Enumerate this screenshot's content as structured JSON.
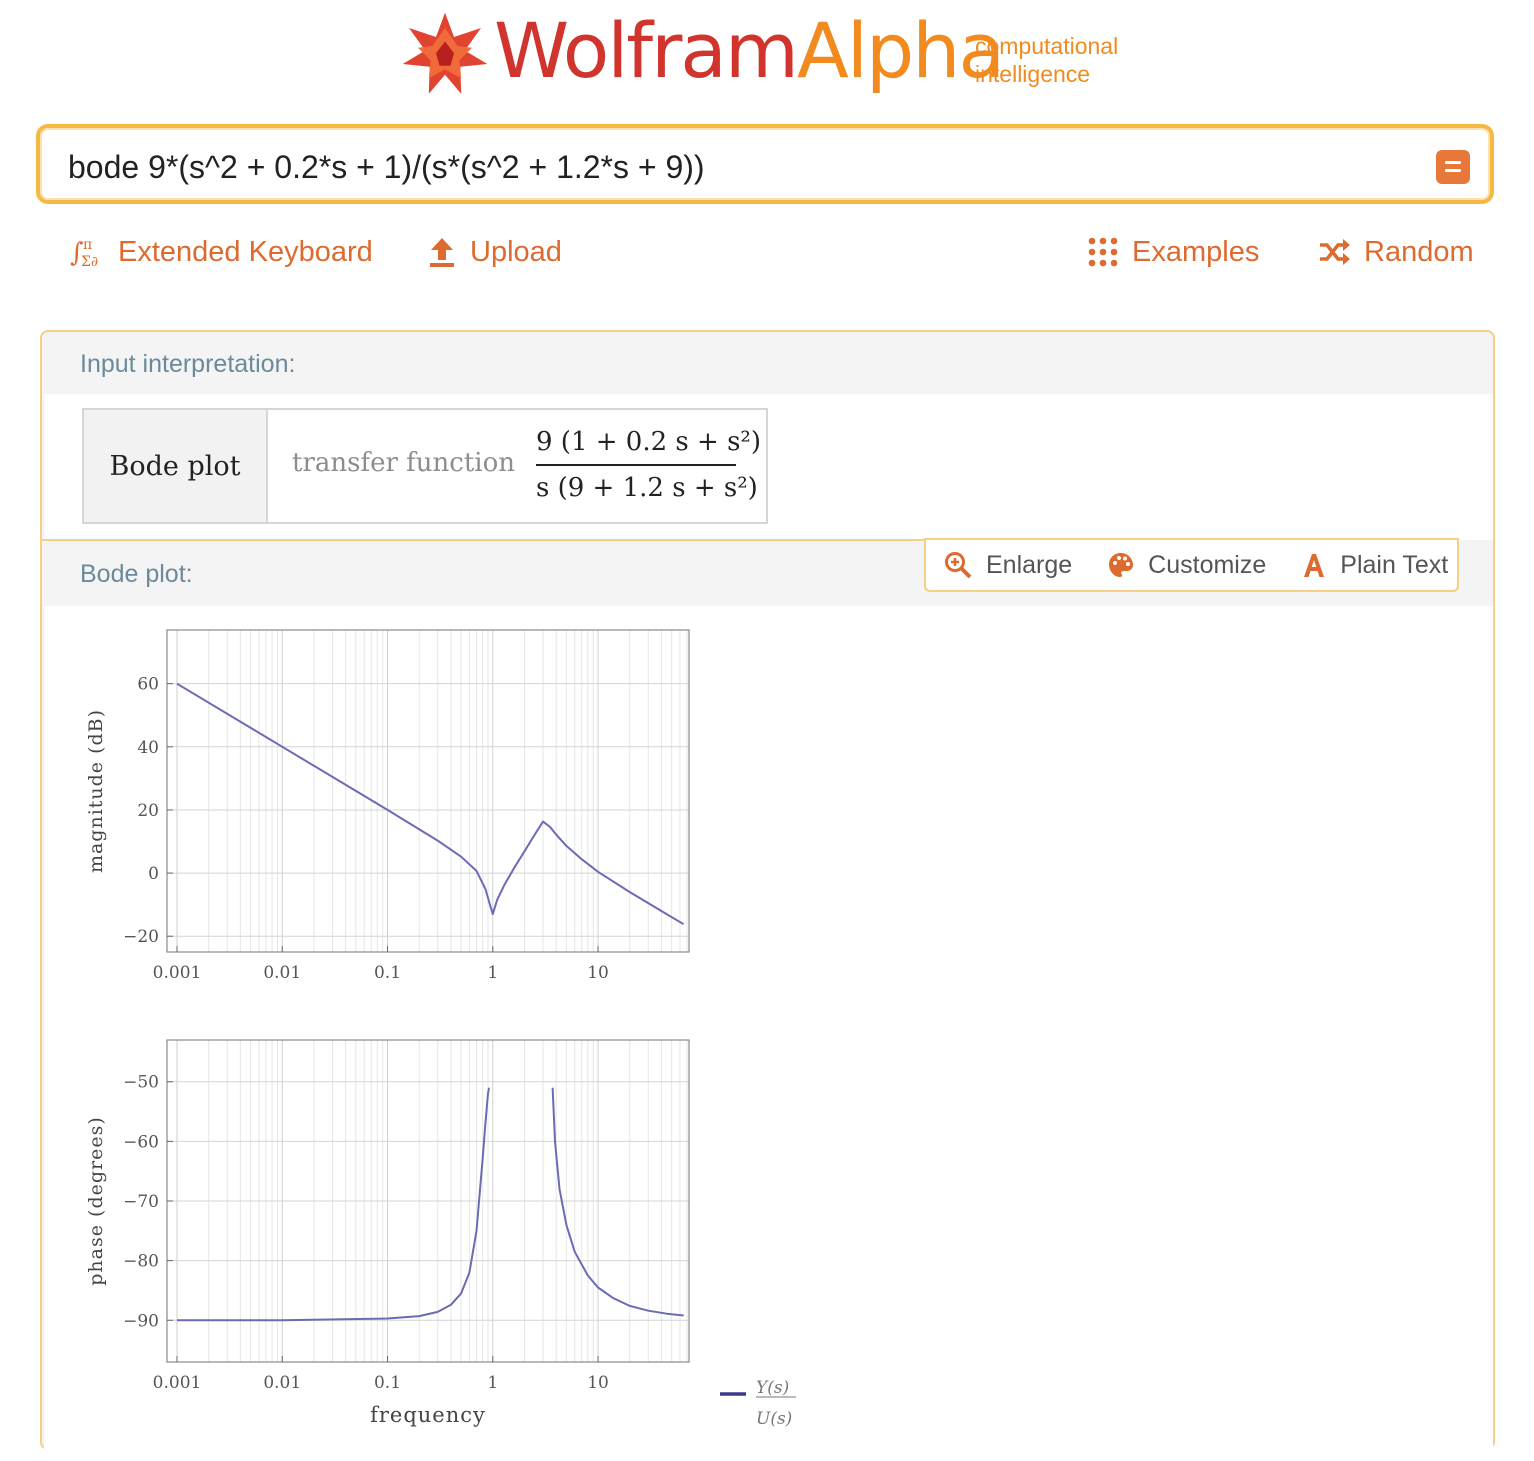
{
  "logo": {
    "wolfram": "Wolfram",
    "alpha": "Alpha",
    "tagline_line1": "computational",
    "tagline_line2": "intelligence",
    "brand_red": "#d1342c",
    "brand_orange": "#f18a1f"
  },
  "search": {
    "query": "bode 9*(s^2 + 0.2*s + 1)/(s*(s^2 + 1.2*s + 9))",
    "submit_icon": "equals-icon"
  },
  "toolbar": {
    "extended_keyboard": "Extended Keyboard",
    "upload": "Upload",
    "examples": "Examples",
    "random": "Random",
    "accent": "#dd6a2e"
  },
  "input_interpretation": {
    "title": "Input interpretation:",
    "label": "Bode plot",
    "transfer_function_label": "transfer function",
    "numerator": "9 (1 + 0.2 s + s²)",
    "denominator": "s (9 + 1.2 s + s²)"
  },
  "bode_pod": {
    "title": "Bode plot:",
    "buttons": {
      "enlarge": "Enlarge",
      "customize": "Customize",
      "plain_text": "Plain Text"
    }
  },
  "chart_data": [
    {
      "type": "line",
      "ylabel": "magnitude (dB)",
      "xscale": "log",
      "xlim": [
        0.001,
        70
      ],
      "ylim": [
        -25,
        77
      ],
      "xticks": [
        "0.001",
        "0.01",
        "0.1",
        "1",
        "10"
      ],
      "yticks": [
        "60",
        "40",
        "20",
        "0",
        "-20"
      ],
      "grid": true,
      "series": [
        {
          "color": "#6b6bb5",
          "x": [
            0.001,
            0.01,
            0.1,
            0.3,
            0.5,
            0.7,
            0.85,
            0.93,
            1.0,
            1.1,
            1.3,
            1.6,
            2.0,
            2.5,
            3.0,
            3.5,
            4.0,
            5.0,
            7.0,
            10,
            20,
            40,
            65
          ],
          "y": [
            60,
            40,
            20,
            10.3,
            5.2,
            0.7,
            -5,
            -9.5,
            -13,
            -8.5,
            -3.5,
            1.7,
            6.9,
            12.2,
            16.3,
            14.6,
            12.2,
            8.6,
            4.4,
            0.4,
            -6.0,
            -12.0,
            -16.2
          ]
        }
      ]
    },
    {
      "type": "line",
      "xlabel": "frequency",
      "ylabel": "phase (degrees)",
      "xscale": "log",
      "xlim": [
        0.001,
        70
      ],
      "ylim": [
        -97,
        -43
      ],
      "xticks": [
        "0.001",
        "0.01",
        "0.1",
        "1",
        "10"
      ],
      "yticks": [
        "-50",
        "-60",
        "-70",
        "-80",
        "-90"
      ],
      "grid": true,
      "legend": {
        "numerator": "Y(s)",
        "denominator": "U(s)",
        "color": "#3a3a8c"
      },
      "series": [
        {
          "color": "#6b6bb5",
          "x": [
            0.001,
            0.01,
            0.1,
            0.2,
            0.3,
            0.4,
            0.5,
            0.6,
            0.7,
            0.8,
            0.85,
            0.9,
            0.92
          ],
          "y": [
            -90,
            -90,
            -89.7,
            -89.3,
            -88.6,
            -87.4,
            -85.5,
            -82,
            -75,
            -63,
            -57,
            -52,
            -51
          ]
        },
        {
          "color": "#6b6bb5",
          "x": [
            3.7,
            3.9,
            4.3,
            5,
            6,
            8,
            10,
            14,
            20,
            30,
            45,
            65
          ],
          "y": [
            -51,
            -60,
            -68,
            -74,
            -78.5,
            -82.5,
            -84.5,
            -86.3,
            -87.6,
            -88.4,
            -88.9,
            -89.2
          ]
        }
      ]
    }
  ]
}
